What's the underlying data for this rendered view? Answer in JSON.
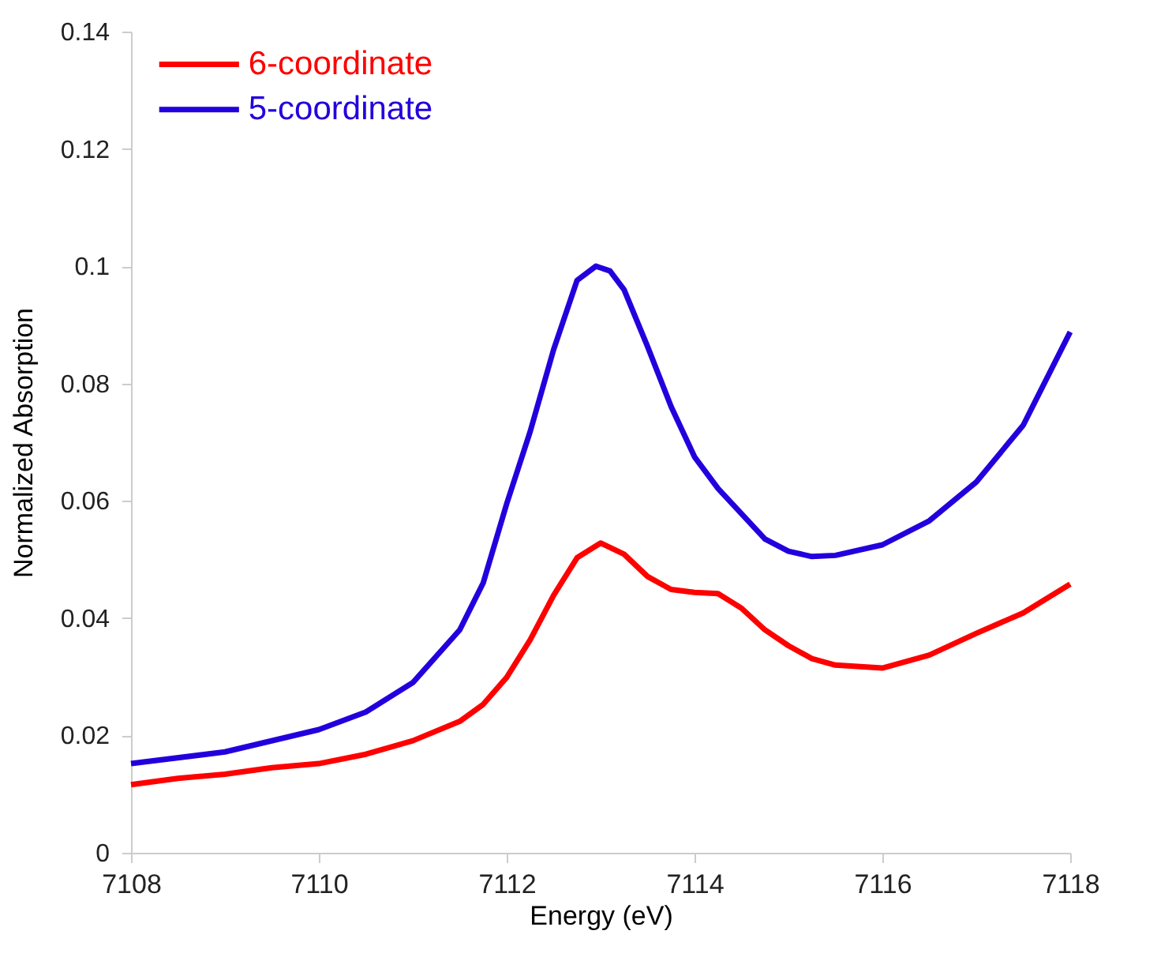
{
  "chart_data": {
    "type": "line",
    "xlabel": "Energy (eV)",
    "ylabel": "Normalized Absorption",
    "xlim": [
      7108,
      7118
    ],
    "xticks": [
      7108,
      7110,
      7112,
      7114,
      7116,
      7118
    ],
    "ylim": [
      0,
      0.14
    ],
    "yticks": [
      0,
      0.02,
      0.04,
      0.06,
      0.08,
      0.1,
      0.12,
      0.14
    ],
    "grid": false,
    "legend": "top left",
    "marker": "none",
    "line_style": "solid",
    "series": [
      {
        "name": "6-coordinate",
        "color": "#ff0000",
        "x": [
          7108,
          7108.5,
          7109,
          7109.5,
          7110,
          7110.5,
          7111,
          7111.5,
          7111.75,
          7112,
          7112.25,
          7112.5,
          7112.75,
          7113,
          7113.25,
          7113.5,
          7113.75,
          7114,
          7114.25,
          7114.5,
          7114.75,
          7115,
          7115.25,
          7115.5,
          7116,
          7116.5,
          7117,
          7117.5,
          7118
        ],
        "values": [
          0.0116,
          0.0127,
          0.0134,
          0.0145,
          0.0152,
          0.0168,
          0.0191,
          0.0224,
          0.0253,
          0.0299,
          0.0363,
          0.0439,
          0.0503,
          0.0528,
          0.0509,
          0.0471,
          0.0449,
          0.0444,
          0.0442,
          0.0417,
          0.038,
          0.0353,
          0.0331,
          0.032,
          0.0315,
          0.0337,
          0.0374,
          0.0409,
          0.0458
        ]
      },
      {
        "name": "5-coordinate",
        "color": "#2200dd",
        "x": [
          7108,
          7109,
          7110,
          7110.5,
          7111,
          7111.5,
          7111.75,
          7112,
          7112.25,
          7112.5,
          7112.75,
          7112.95,
          7113.1,
          7113.25,
          7113.5,
          7113.75,
          7114,
          7114.25,
          7114.5,
          7114.75,
          7115,
          7115.25,
          7115.5,
          7116,
          7116.5,
          7117,
          7117.5,
          7118
        ],
        "values": [
          0.0152,
          0.0172,
          0.021,
          0.024,
          0.029,
          0.038,
          0.046,
          0.0595,
          0.0718,
          0.0858,
          0.0976,
          0.1,
          0.0992,
          0.096,
          0.0863,
          0.0761,
          0.0675,
          0.0621,
          0.0578,
          0.0535,
          0.0514,
          0.0505,
          0.0507,
          0.0525,
          0.0566,
          0.0632,
          0.0729,
          0.0888
        ]
      }
    ]
  }
}
